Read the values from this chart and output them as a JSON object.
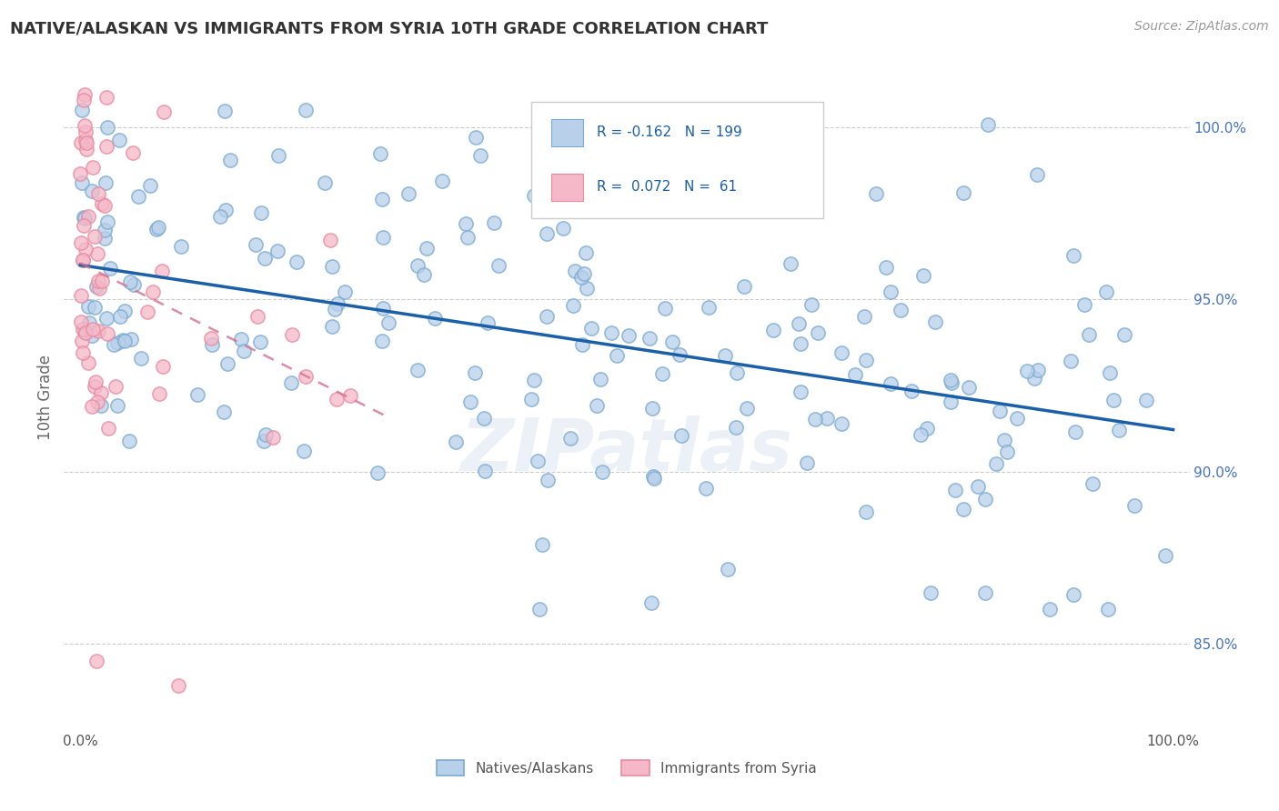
{
  "title": "NATIVE/ALASKAN VS IMMIGRANTS FROM SYRIA 10TH GRADE CORRELATION CHART",
  "source": "Source: ZipAtlas.com",
  "ylabel": "10th Grade",
  "right_yticks": [
    85.0,
    90.0,
    95.0,
    100.0
  ],
  "watermark": "ZIPatlas",
  "legend_label_blue": "Natives/Alaskans",
  "legend_label_pink": "Immigrants from Syria",
  "blue_face_color": "#b8d0ea",
  "pink_face_color": "#f5b8c8",
  "blue_edge_color": "#7aaad0",
  "pink_edge_color": "#e88aa0",
  "blue_line_color": "#1a5fa8",
  "pink_line_color": "#d47090",
  "grid_color": "#cccccc",
  "title_color": "#333333",
  "source_color": "#999999",
  "tick_color": "#4472c4",
  "ylabel_color": "#666666"
}
